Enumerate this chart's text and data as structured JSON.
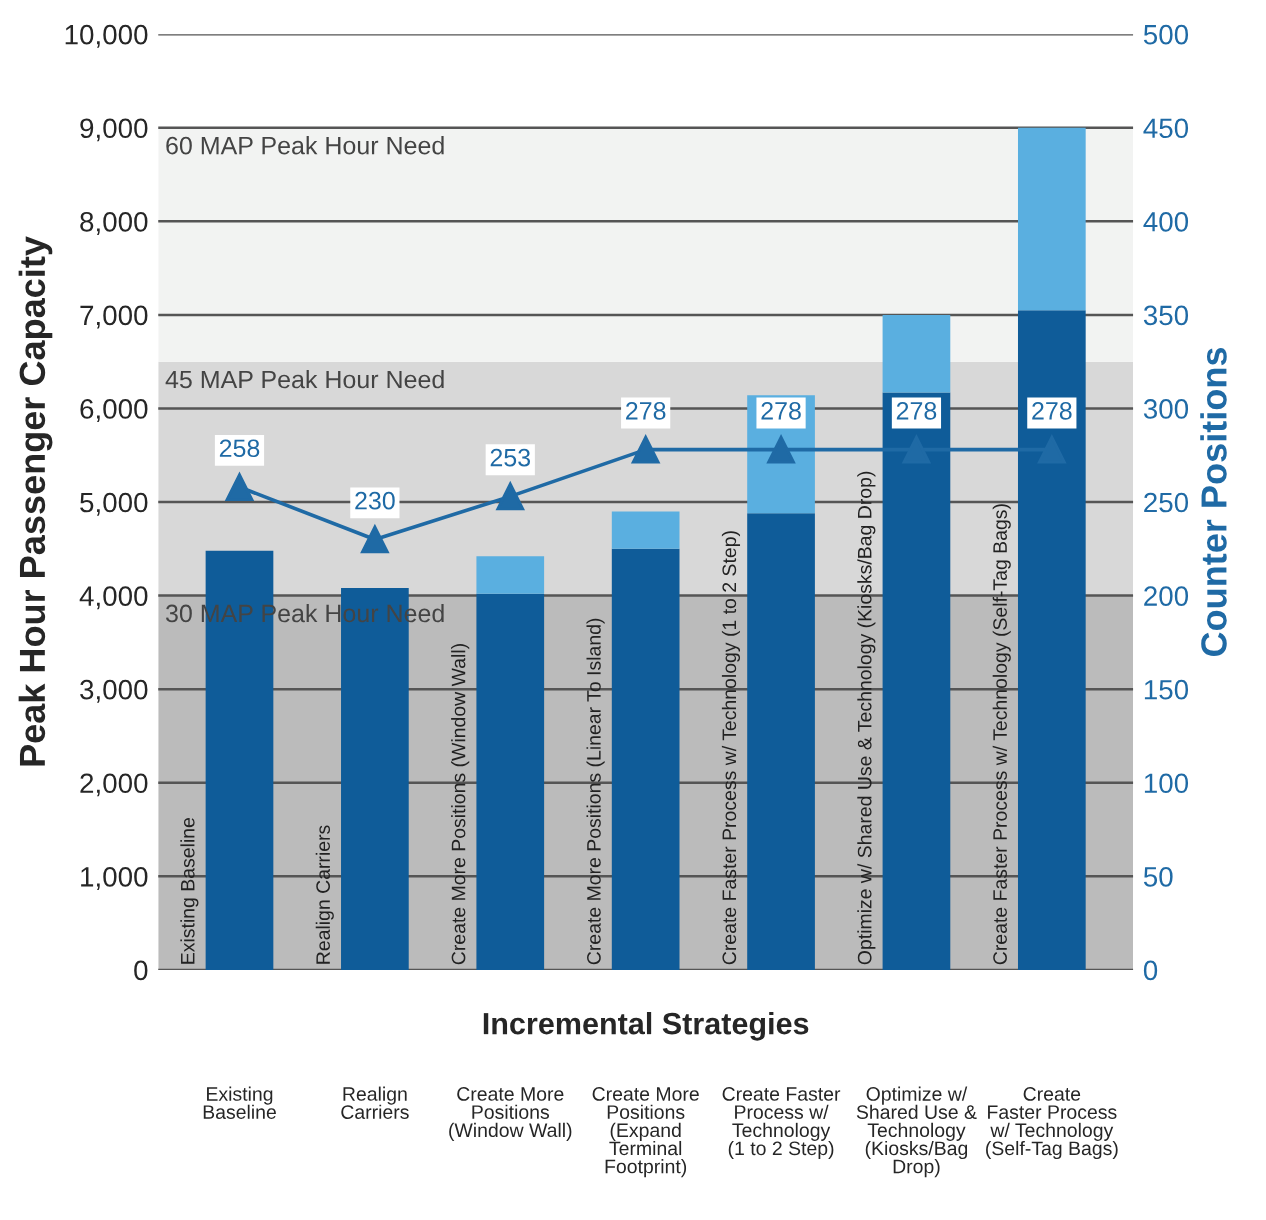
{
  "chart_data": {
    "type": "bar",
    "stacked": true,
    "xlabel": "Incremental Strategies",
    "ylabel": "Peak Hour Passenger Capacity",
    "y2label": "Counter Positions",
    "categories": [
      "Existing\nBaseline",
      "Realign\nCarriers",
      "Create More\nPositions\n(Window Wall)",
      "Create More\nPositions\n(Expand\nTerminal\nFootprint)",
      "Create Faster\nProcess w/\nTechnology\n(1 to 2 Step)",
      "Optimize w/\nShared Use &\nTechnology\n(Kiosks/Bag\nDrop)",
      "Create\nFaster Process\nw/ Technology\n(Self-Tag Bags)"
    ],
    "series": [
      {
        "color": "#0f5c99",
        "values": [
          4480,
          4080,
          4020,
          4500,
          4880,
          6170,
          7050
        ]
      },
      {
        "color": "#5aafe0",
        "values": [
          0,
          0,
          400,
          400,
          1260,
          830,
          1950
        ]
      },
      {
        "type": "line",
        "axis": "y2",
        "color": "#1f6aa5",
        "marker": "triangle",
        "line_style": "solid",
        "values": [
          258,
          230,
          253,
          278,
          278,
          278,
          278
        ],
        "value_labels": [
          "258",
          "230",
          "253",
          "278",
          "278",
          "278",
          "278"
        ]
      }
    ],
    "ylim": [
      0,
      10000
    ],
    "yticks": [
      {
        "value": 0,
        "label": "0"
      },
      {
        "value": 1000,
        "label": "1,000"
      },
      {
        "value": 2000,
        "label": "2,000"
      },
      {
        "value": 3000,
        "label": "3,000"
      },
      {
        "value": 4000,
        "label": "4,000"
      },
      {
        "value": 5000,
        "label": "5,000"
      },
      {
        "value": 6000,
        "label": "6,000"
      },
      {
        "value": 7000,
        "label": "7,000"
      },
      {
        "value": 8000,
        "label": "8,000"
      },
      {
        "value": 9000,
        "label": "9,000"
      },
      {
        "value": 10000,
        "label": "10,000"
      }
    ],
    "y2lim": [
      0,
      500
    ],
    "y2ticks": [
      0,
      50,
      100,
      150,
      200,
      250,
      300,
      350,
      400,
      450,
      500
    ],
    "bands": [
      {
        "axis": "y",
        "from": 0,
        "to": 4000,
        "label": "30 MAP Peak Hour Need",
        "color": "#bbbbbb"
      },
      {
        "axis": "y",
        "from": 4000,
        "to": 6500,
        "label": "45 MAP Peak Hour Need",
        "color": "#d8d8d8"
      },
      {
        "axis": "y",
        "from": 6500,
        "to": 9000,
        "label": "60 MAP Peak Hour Need",
        "color": "#f2f3f2"
      }
    ],
    "annotations": [
      "Existing Baseline",
      "Realign Carriers",
      "Create More Positions (Window Wall)",
      "Create More Positions (Linear To Island)",
      "Create Faster Process w/ Technology (1 to 2 Step)",
      "Optimize w/ Shared Use & Technology (Kiosks/Bag Drop)",
      "Create Faster Process w/ Technology (Self-Tag Bags)"
    ],
    "grid": "y",
    "legend": false
  }
}
